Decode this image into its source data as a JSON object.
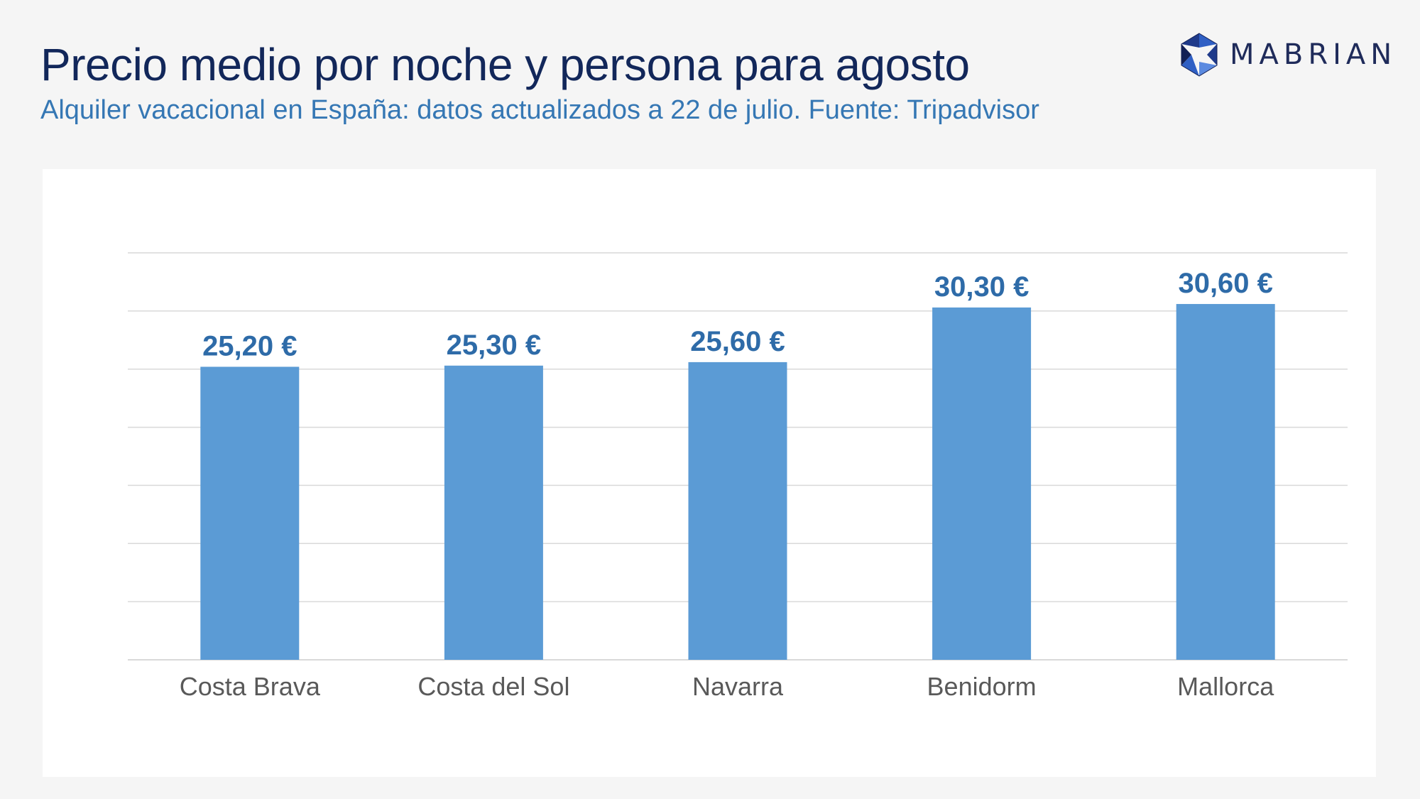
{
  "header": {
    "title": "Precio medio por noche y persona para agosto",
    "subtitle": "Alquiler vacacional en España: datos actualizados a 22 de julio. Fuente: Tripadvisor"
  },
  "logo": {
    "text": "MABRIAN",
    "icon": "hexagon-shutter-icon",
    "colors": [
      "#1f3a8a",
      "#2f5fc4",
      "#5b8ae0",
      "#121f55"
    ]
  },
  "chart_data": {
    "type": "bar",
    "categories": [
      "Costa Brava",
      "Costa del Sol",
      "Navarra",
      "Benidorm",
      "Mallorca"
    ],
    "values": [
      25.2,
      25.3,
      25.6,
      30.3,
      30.6
    ],
    "data_labels": [
      "25,20 €",
      "25,30 €",
      "25,60 €",
      "30,30 €",
      "30,60 €"
    ],
    "title": "",
    "xlabel": "",
    "ylabel": "",
    "ylim": [
      0,
      35
    ],
    "gridlines": true,
    "legend": "none",
    "colors": {
      "bar": "#5b9bd5",
      "label": "#2e6ba8",
      "category": "#595959",
      "grid": "#d9d9d9"
    }
  }
}
